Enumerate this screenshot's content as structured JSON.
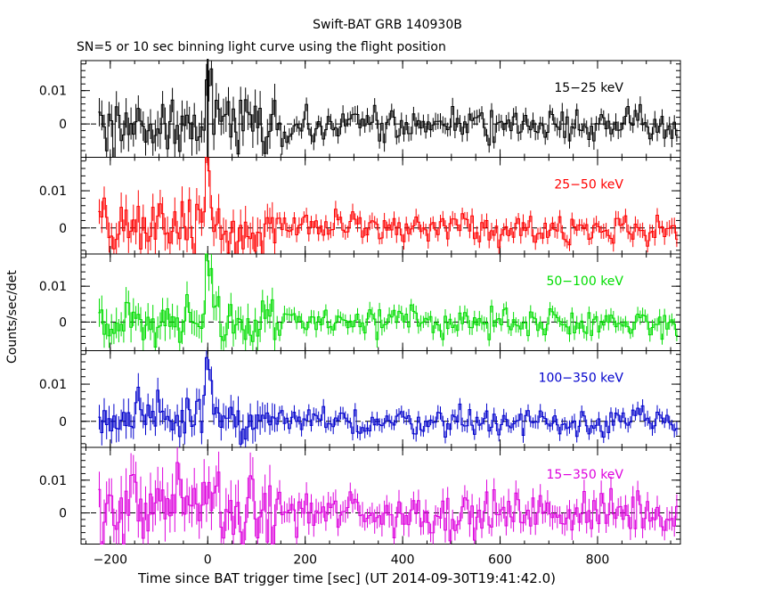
{
  "title": "Swift-BAT GRB 140930B",
  "subtitle": "SN=5 or 10 sec binning light curve using the flight position",
  "chart_data": {
    "type": "line",
    "style": "histogram step with error bars, stacked panels",
    "xlabel": "Time since BAT trigger time [sec] (UT 2014-09-30T19:41:42.0)",
    "ylabel": "Counts/sec/det",
    "xlim": [
      -260,
      970
    ],
    "x_ticks": [
      -200,
      0,
      200,
      400,
      600,
      800
    ],
    "x_tick_labels": [
      "−200",
      "0",
      "200",
      "400",
      "600",
      "800"
    ],
    "trigger_line_x": 0,
    "grid": false,
    "panels": [
      {
        "name": "15−25 keV",
        "color": "#000000",
        "ylim": [
          -0.01,
          0.019
        ],
        "y_ticks": [
          0,
          0.01
        ],
        "y_tick_labels": [
          "0",
          "0.01"
        ],
        "spike_t": [
          -50,
          -25,
          -5,
          0,
          5,
          10
        ],
        "spike_v": [
          0.002,
          0.008,
          0.01,
          0.018,
          0.006,
          0.004
        ],
        "base_std": 0.0034,
        "err_before": 0.0045,
        "err_after": 0.0023
      },
      {
        "name": "25−50 keV",
        "color": "#ff0000",
        "ylim": [
          -0.007,
          0.019
        ],
        "y_ticks": [
          0,
          0.01
        ],
        "y_tick_labels": [
          "0",
          "0.01"
        ],
        "spike_t": [
          -215,
          -5,
          0,
          5,
          10,
          20
        ],
        "spike_v": [
          0.009,
          0.004,
          0.019,
          0.011,
          0.005,
          0.003
        ],
        "base_std": 0.0028,
        "err_before": 0.0038,
        "err_after": 0.0019
      },
      {
        "name": "50−100 keV",
        "color": "#00dd00",
        "ylim": [
          -0.008,
          0.019
        ],
        "y_ticks": [
          0,
          0.01
        ],
        "y_tick_labels": [
          "0",
          "0.01"
        ],
        "spike_t": [
          -15,
          -5,
          0,
          5,
          10,
          15,
          20
        ],
        "spike_v": [
          0.004,
          0.006,
          0.018,
          0.012,
          0.008,
          0.005,
          0.003
        ],
        "base_std": 0.0026,
        "err_before": 0.0036,
        "err_after": 0.0019
      },
      {
        "name": "100−350 keV",
        "color": "#0000cc",
        "ylim": [
          -0.007,
          0.019
        ],
        "y_ticks": [
          0,
          0.01
        ],
        "y_tick_labels": [
          "0",
          "0.01"
        ],
        "spike_t": [
          -25,
          -5,
          0,
          5,
          10,
          15
        ],
        "spike_v": [
          0.005,
          0.006,
          0.019,
          0.01,
          0.005,
          0.003
        ],
        "base_std": 0.0025,
        "err_before": 0.0033,
        "err_after": 0.0017
      },
      {
        "name": "15−350 keV",
        "color": "#dd00dd",
        "ylim": [
          -0.0095,
          0.02
        ],
        "y_ticks": [
          0,
          0.01
        ],
        "y_tick_labels": [
          "0",
          "0.01"
        ],
        "spike_t": [
          -205,
          -150,
          -60,
          -25,
          0,
          20,
          140
        ],
        "spike_v": [
          0.012,
          0.012,
          0.012,
          0.012,
          0.019,
          0.013,
          0.009
        ],
        "base_std": 0.0045,
        "err_before": 0.006,
        "err_after": 0.0033
      }
    ]
  }
}
